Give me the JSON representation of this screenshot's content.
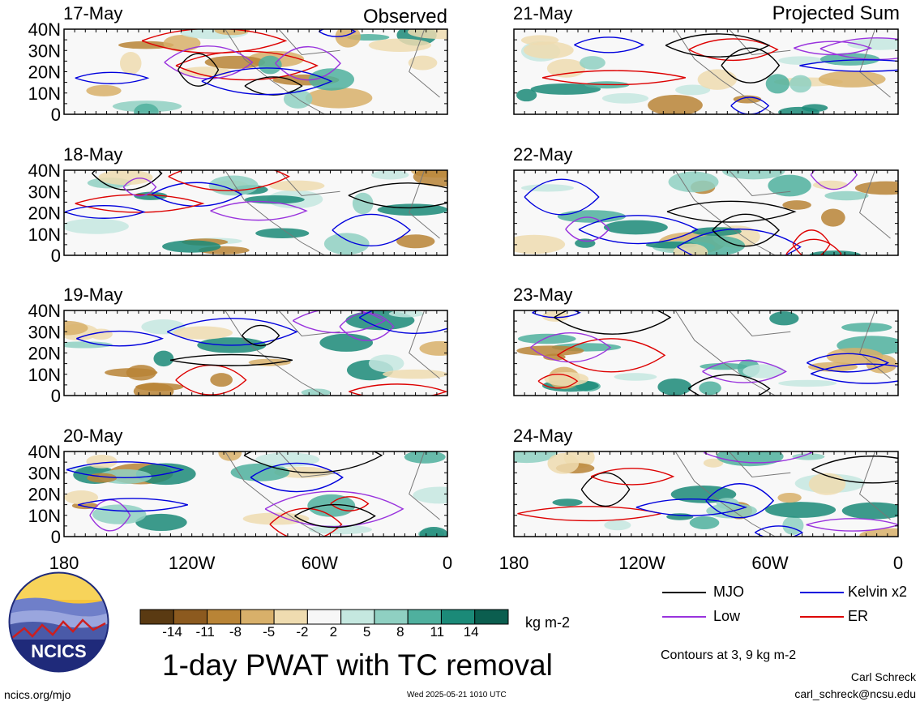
{
  "columns": {
    "left_header": "Observed",
    "right_header": "Projected Sum"
  },
  "panels": [
    {
      "date": "17-May",
      "column": "observed"
    },
    {
      "date": "18-May",
      "column": "observed"
    },
    {
      "date": "19-May",
      "column": "observed"
    },
    {
      "date": "20-May",
      "column": "observed"
    },
    {
      "date": "21-May",
      "column": "projected"
    },
    {
      "date": "22-May",
      "column": "projected"
    },
    {
      "date": "23-May",
      "column": "projected"
    },
    {
      "date": "24-May",
      "column": "projected"
    }
  ],
  "lat_ticks": [
    "40N",
    "30N",
    "20N",
    "10N",
    "0"
  ],
  "lon_ticks": [
    "180",
    "120W",
    "60W",
    "0"
  ],
  "colorbar": {
    "tick_labels": [
      "-14",
      "-11",
      "-8",
      "-5",
      "-2",
      "2",
      "5",
      "8",
      "11",
      "14"
    ],
    "colors": [
      "#5a3a12",
      "#8c5a1f",
      "#b98436",
      "#d8b06a",
      "#efdcb0",
      "#f7f7f7",
      "#c5e8e0",
      "#8fd0c2",
      "#4fb09e",
      "#1b8a78",
      "#0b5e4f"
    ],
    "unit": "kg m-2"
  },
  "title": "1-day PWAT with TC removal",
  "legend": [
    {
      "label": "MJO",
      "color": "#000000"
    },
    {
      "label": "Kelvin x2",
      "color": "#0000dd"
    },
    {
      "label": "Low",
      "color": "#9933dd"
    },
    {
      "label": "ER",
      "color": "#dd0000"
    }
  ],
  "contours_note": "Contours at 3, 9 kg m-2",
  "logo_text": "NCICS",
  "footer": {
    "url": "ncics.org/mjo",
    "timestamp": "Wed 2025-05-21 1010 UTC",
    "author": "Carl Schreck",
    "email": "carl_schreck@ncsu.edu"
  }
}
